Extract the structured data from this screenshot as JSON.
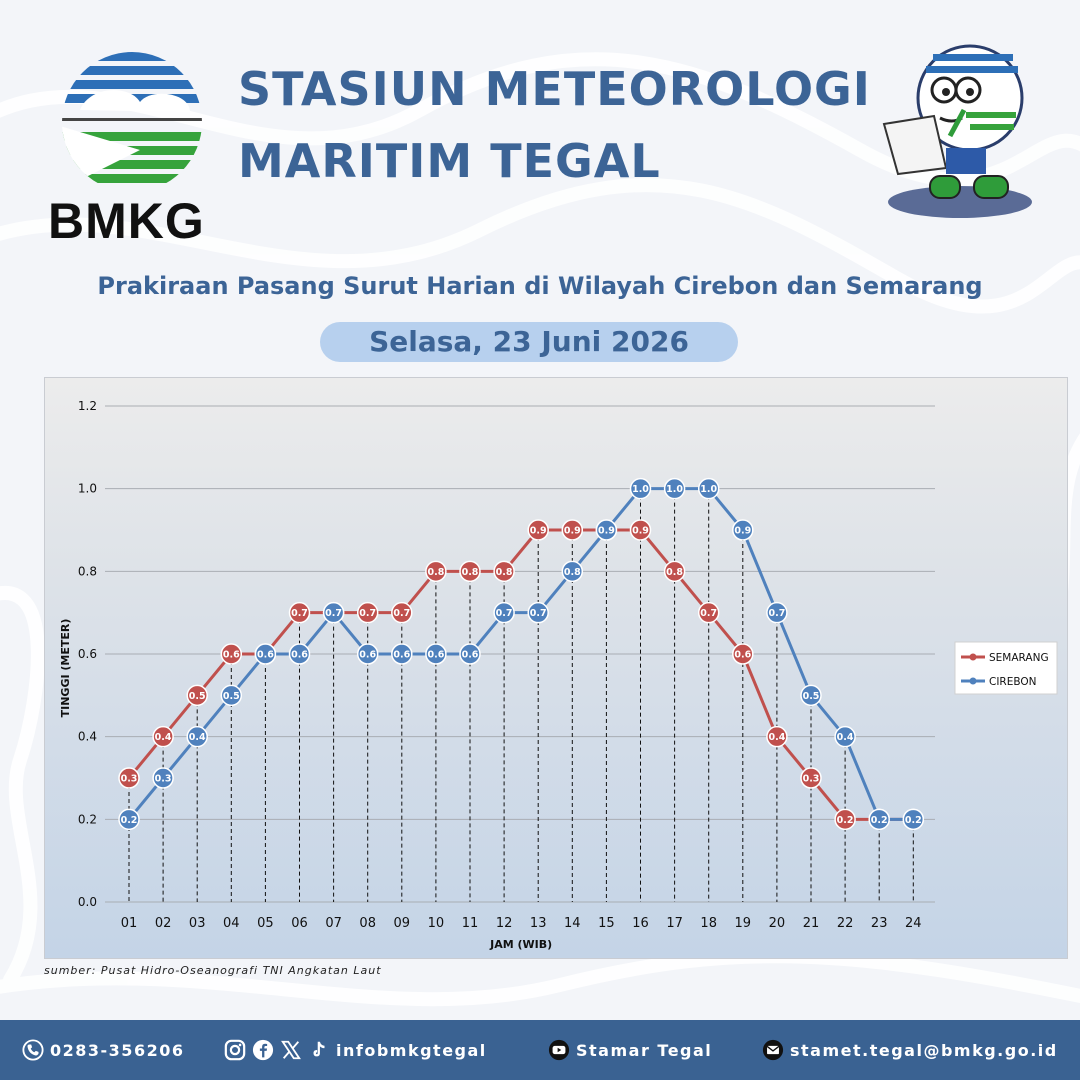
{
  "header": {
    "logo_text": "BMKG",
    "title_line1": "STASIUN METEOROLOGI",
    "title_line2": "MARITIM TEGAL",
    "subtitle": "Prakiraan Pasang Surut Harian di Wilayah Cirebon dan Semarang",
    "date": "Selasa, 23 Juni 2026"
  },
  "chart_data": {
    "type": "line",
    "title": "",
    "xlabel": "JAM (WIB)",
    "ylabel": "TINGGI (METER)",
    "ylim": [
      0,
      1.2
    ],
    "yticks": [
      "0.0",
      "0.2",
      "0.4",
      "0.6",
      "0.8",
      "1.0",
      "1.2"
    ],
    "categories": [
      "01",
      "02",
      "03",
      "04",
      "05",
      "06",
      "07",
      "08",
      "09",
      "10",
      "11",
      "12",
      "13",
      "14",
      "15",
      "16",
      "17",
      "18",
      "19",
      "20",
      "21",
      "22",
      "23",
      "24"
    ],
    "legend_position": "right",
    "grid": true,
    "series": [
      {
        "name": "SEMARANG",
        "color": "#c0504d",
        "values": [
          0.3,
          0.4,
          0.5,
          0.6,
          0.6,
          0.7,
          0.7,
          0.7,
          0.7,
          0.8,
          0.8,
          0.8,
          0.9,
          0.9,
          0.9,
          0.9,
          0.8,
          0.7,
          0.6,
          0.4,
          0.3,
          0.2,
          0.2,
          0.2
        ]
      },
      {
        "name": "CIREBON",
        "color": "#4f81bd",
        "values": [
          0.2,
          0.3,
          0.4,
          0.5,
          0.6,
          0.6,
          0.7,
          0.6,
          0.6,
          0.6,
          0.6,
          0.7,
          0.7,
          0.8,
          0.9,
          1.0,
          1.0,
          1.0,
          0.9,
          0.7,
          0.5,
          0.4,
          0.2,
          0.2
        ]
      }
    ]
  },
  "source": "sumber: Pusat Hidro-Oseanografi TNI Angkatan Laut",
  "footer": {
    "phone": "0283-356206",
    "social": "infobmkgtegal",
    "youtube": "Stamar Tegal",
    "email": "stamet.tegal@bmkg.go.id",
    "color": "#3a6292"
  }
}
